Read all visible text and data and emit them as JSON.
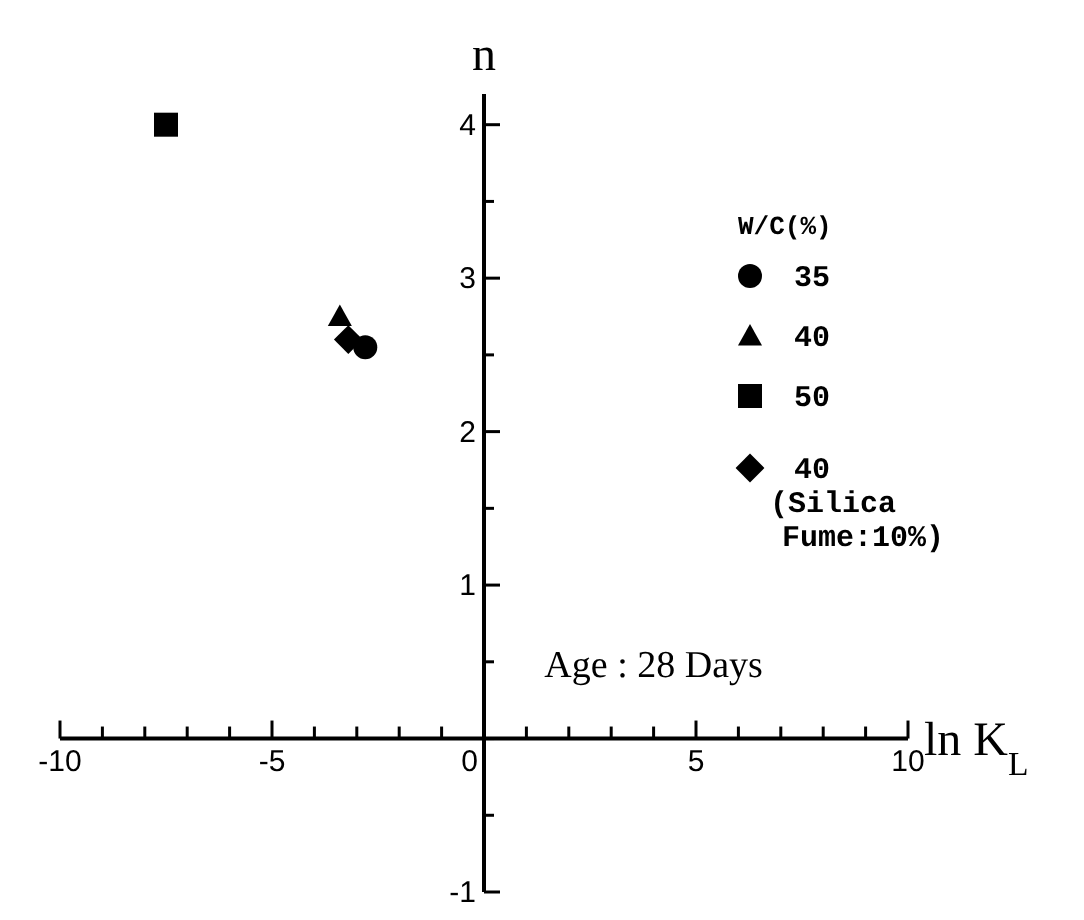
{
  "chart_data": {
    "type": "scatter",
    "xlabel": "ln K$_{L}$",
    "ylabel": "n",
    "legend_title": "W/C(%)",
    "legend": "right",
    "annotations": [
      "Age : 28 Days"
    ],
    "xlim": [
      -10,
      10
    ],
    "ylim": [
      -1,
      4.2
    ],
    "xticks": [
      -10,
      {
        "value": -9,
        "label": null
      },
      {
        "value": -8,
        "label": null
      },
      {
        "value": -7,
        "label": null
      },
      {
        "value": -6,
        "label": null
      },
      -5,
      {
        "value": -4,
        "label": null
      },
      {
        "value": -3,
        "label": null
      },
      {
        "value": -2,
        "label": null
      },
      {
        "value": -1,
        "label": null
      },
      0,
      {
        "value": 1,
        "label": null
      },
      {
        "value": 2,
        "label": null
      },
      {
        "value": 3,
        "label": null
      },
      {
        "value": 4,
        "label": null
      },
      5,
      {
        "value": 6,
        "label": null
      },
      {
        "value": 7,
        "label": null
      },
      {
        "value": 8,
        "label": null
      },
      {
        "value": 9,
        "label": null
      },
      10
    ],
    "yticks": [
      -1,
      {
        "value": -0.5,
        "label": null
      },
      {
        "value": 0,
        "label": null
      },
      {
        "value": 0.5,
        "label": null
      },
      1,
      {
        "value": 1.5,
        "label": null
      },
      2,
      {
        "value": 2.5,
        "label": null
      },
      3,
      {
        "value": 3.5,
        "label": null
      },
      4
    ],
    "series": [
      {
        "name": "35",
        "color": "#000000",
        "marker": "circle",
        "x": [
          -2.8
        ],
        "values": [
          2.55
        ]
      },
      {
        "name": "40",
        "color": "#000000",
        "marker": "triangle",
        "x": [
          -3.4
        ],
        "values": [
          2.75
        ]
      },
      {
        "name": "50",
        "color": "#000000",
        "marker": "square",
        "x": [
          -7.5
        ],
        "values": [
          4.0
        ]
      },
      {
        "name": "40 (Silica Fume:10%)",
        "color": "#000000",
        "marker": "diamond",
        "x": [
          -3.2
        ],
        "values": [
          2.6
        ]
      }
    ]
  }
}
